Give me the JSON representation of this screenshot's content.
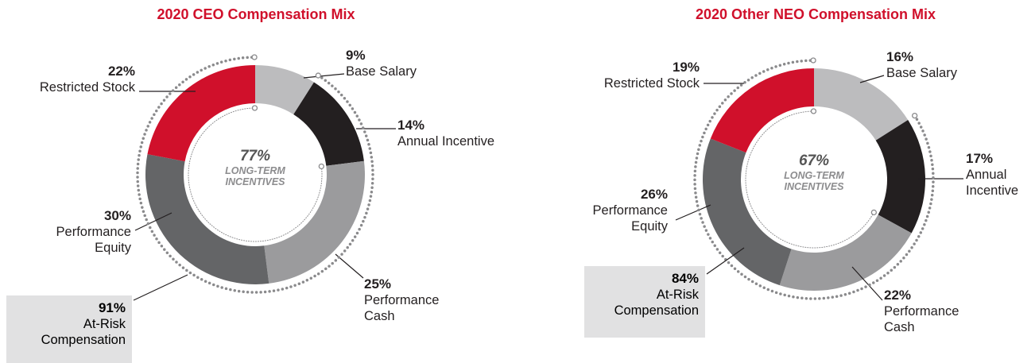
{
  "chart_data": [
    {
      "type": "pie",
      "title": "2020 CEO Compensation Mix",
      "categories": [
        "Base Salary",
        "Annual Incentive",
        "Performance Cash",
        "Performance Equity",
        "Restricted Stock"
      ],
      "values": [
        9,
        14,
        25,
        30,
        22
      ],
      "value_labels": [
        "9%",
        "14%",
        "25%",
        "30%",
        "22%"
      ],
      "colors": [
        "#bcbcbe",
        "#231f20",
        "#9b9b9d",
        "#646567",
        "#d0102b"
      ],
      "center": {
        "value": 77,
        "label": "77%",
        "text": "LONG-TERM INCENTIVES"
      },
      "callout": {
        "value": 91,
        "label": "91%",
        "text": "At-Risk Compensation"
      }
    },
    {
      "type": "pie",
      "title": "2020 Other NEO Compensation Mix",
      "categories": [
        "Base Salary",
        "Annual Incentive",
        "Performance Cash",
        "Performance Equity",
        "Restricted Stock"
      ],
      "values": [
        16,
        17,
        22,
        26,
        19
      ],
      "value_labels": [
        "16%",
        "17%",
        "22%",
        "26%",
        "19%"
      ],
      "colors": [
        "#bcbcbe",
        "#231f20",
        "#9b9b9d",
        "#646567",
        "#d0102b"
      ],
      "center": {
        "value": 67,
        "label": "67%",
        "text": "LONG-TERM INCENTIVES"
      },
      "callout": {
        "value": 84,
        "label": "84%",
        "text": "At-Risk Compensation"
      }
    }
  ]
}
